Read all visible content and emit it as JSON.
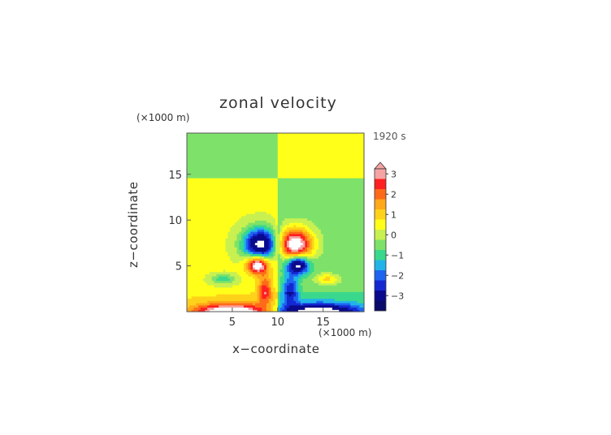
{
  "chart_data": {
    "type": "heatmap",
    "title": "zonal velocity",
    "xlabel": "x−coordinate",
    "ylabel": "z−coordinate",
    "x_unit_label": "(×1000 m)",
    "z_unit_label": "(×1000 m)",
    "time_label": "1920 s",
    "xlim": [
      0,
      19.5
    ],
    "ylim": [
      0,
      19.5
    ],
    "x_ticks": [
      "5",
      "10",
      "15"
    ],
    "x_tick_values": [
      5,
      10,
      15
    ],
    "y_ticks": [
      "5",
      "10",
      "15"
    ],
    "y_tick_values": [
      5,
      10,
      15
    ],
    "colorbar": {
      "tick_labels": [
        "3",
        "2",
        "1",
        "0",
        "−1",
        "−2",
        "−3"
      ],
      "tick_values": [
        3,
        2,
        1,
        0,
        -1,
        -2,
        -3
      ],
      "range": [
        -3.5,
        3.5
      ],
      "extend": "both",
      "colors": {
        "above": "#ffffff",
        "3": "#f6a3a3",
        "2.5": "#ff2020",
        "2": "#ff6a1a",
        "1.5": "#ffa81a",
        "1": "#ffd21a",
        "0.5": "#ffff1a",
        "0": "#c8f050",
        "-0.5": "#7ee26a",
        "-1": "#3ad88c",
        "-1.5": "#22b4e8",
        "-2": "#1e64f0",
        "-2.5": "#1428d2",
        "-3": "#0a0a8c",
        "below": "#ffffff"
      }
    },
    "features": [
      {
        "kind": "background",
        "region": "upper-left and lower-right quadrants",
        "value": -0.3
      },
      {
        "kind": "background",
        "region": "upper-right and lower-left quadrants",
        "value": 0.6
      },
      {
        "kind": "vortex",
        "x": 8.2,
        "z": 7.5,
        "value": -3.6
      },
      {
        "kind": "vortex",
        "x": 11.8,
        "z": 7.5,
        "value": 3.6
      },
      {
        "kind": "vortex",
        "x": 7.8,
        "z": 5.2,
        "value": 3.4
      },
      {
        "kind": "vortex",
        "x": 12.2,
        "z": 5.2,
        "value": -3.4
      },
      {
        "kind": "surface-jet",
        "region": "x<10, z<1",
        "value": 3
      },
      {
        "kind": "surface-jet",
        "region": "x>10, z<1",
        "value": -3
      },
      {
        "kind": "blob",
        "x": 4.0,
        "z": 3.7,
        "value": -1
      },
      {
        "kind": "blob",
        "x": 15.3,
        "z": 3.7,
        "value": 1
      }
    ]
  }
}
